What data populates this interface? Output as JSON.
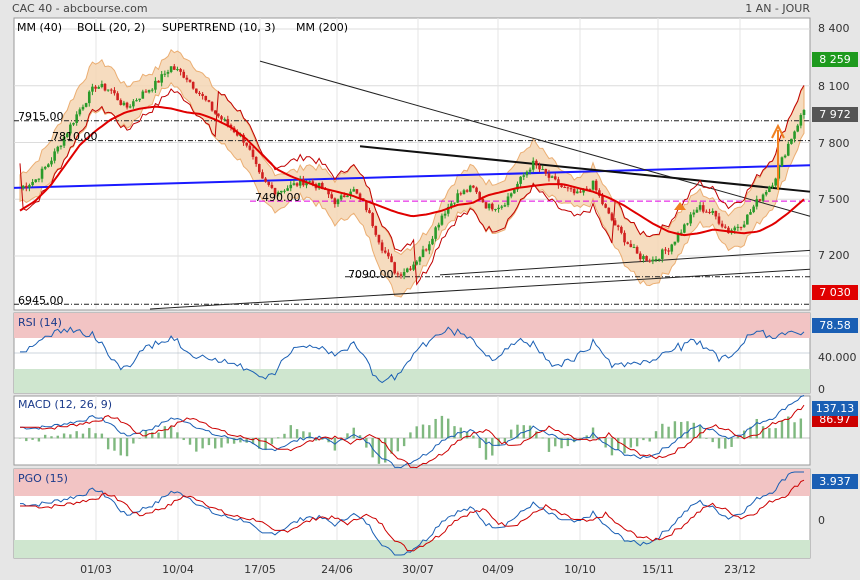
{
  "header": {
    "title": "CAC 40 - abcbourse.com",
    "period": "1 AN - JOUR"
  },
  "legend": [
    {
      "label": "MM (40)",
      "color": "#e00000"
    },
    {
      "label": "BOLL (20, 2)",
      "color": "#e8a05a"
    },
    {
      "label": "SUPERTREND (10, 3)",
      "color": "#c00000"
    },
    {
      "label": "MM (200)",
      "color": "#2020c0"
    }
  ],
  "levels": [
    {
      "label": "7915.00",
      "value": 7915,
      "color": "#222"
    },
    {
      "label": "7810.00",
      "value": 7810,
      "color": "#222"
    },
    {
      "label": "7490.00",
      "value": 7490,
      "color": "#e000e0"
    },
    {
      "label": "7090.00",
      "value": 7090,
      "color": "#222"
    },
    {
      "label": "6945.00",
      "value": 6945,
      "color": "#222"
    }
  ],
  "price_axis": {
    "ticks": [
      "8 400",
      "8 100",
      "7 800",
      "7 500",
      "7 200"
    ],
    "badges": [
      {
        "label": "8 259",
        "value": 8259,
        "color": "#1e9a1e"
      },
      {
        "label": "7 972",
        "value": 7972,
        "color": "#555555"
      },
      {
        "label": "7 030",
        "value": 7030,
        "color": "#e00000"
      }
    ]
  },
  "panels": {
    "rsi": {
      "label": "RSI (14)",
      "ticks": [
        "40.000",
        "0"
      ],
      "badge": "78.58",
      "badge_color": "#1a5fb4"
    },
    "macd": {
      "label": "MACD (12, 26, 9)",
      "badge": "137.13",
      "badge2": "86.97",
      "badge_color": "#1a5fb4",
      "badge2_color": "#cc0000"
    },
    "pgo": {
      "label": "PGO (15)",
      "ticks": [
        "0"
      ],
      "badge": "3.937",
      "badge_color": "#1a5fb4"
    }
  },
  "x_axis": [
    "01/03",
    "10/04",
    "17/05",
    "24/06",
    "30/07",
    "04/09",
    "10/10",
    "15/11",
    "23/12"
  ],
  "chart_data": {
    "type": "candlestick",
    "title": "CAC 40",
    "period": "1 AN - JOUR",
    "ylim": [
      6900,
      8450
    ],
    "x": [
      "01/03",
      "10/04",
      "17/05",
      "24/06",
      "30/07",
      "04/09",
      "10/10",
      "15/11",
      "23/12"
    ],
    "close_path": [
      7560,
      7600,
      7700,
      7840,
      7980,
      8100,
      8080,
      7980,
      8050,
      8110,
      8200,
      8150,
      8050,
      7950,
      7880,
      7800,
      7600,
      7540,
      7570,
      7600,
      7560,
      7480,
      7560,
      7450,
      7250,
      7100,
      7150,
      7250,
      7420,
      7520,
      7560,
      7460,
      7470,
      7580,
      7690,
      7620,
      7560,
      7520,
      7580,
      7420,
      7300,
      7200,
      7180,
      7240,
      7350,
      7460,
      7420,
      7330,
      7380,
      7500,
      7600,
      7800,
      7972
    ],
    "mm40_path": [
      7440,
      7490,
      7570,
      7680,
      7790,
      7860,
      7920,
      7960,
      7980,
      7990,
      7980,
      7960,
      7950,
      7920,
      7880,
      7820,
      7740,
      7660,
      7620,
      7590,
      7560,
      7540,
      7520,
      7490,
      7460,
      7430,
      7410,
      7420,
      7440,
      7470,
      7480,
      7520,
      7540,
      7560,
      7570,
      7580,
      7580,
      7560,
      7540,
      7510,
      7470,
      7420,
      7370,
      7330,
      7310,
      7320,
      7340,
      7330,
      7320,
      7330,
      7370,
      7430,
      7500
    ],
    "mm200": [
      7560,
      7680
    ],
    "series": [
      {
        "name": "RSI (14)",
        "last": 78.58
      },
      {
        "name": "MACD (12, 26, 9)",
        "last": 137.13,
        "signal": 86.97
      },
      {
        "name": "PGO (15)",
        "last": 3.937
      }
    ]
  }
}
